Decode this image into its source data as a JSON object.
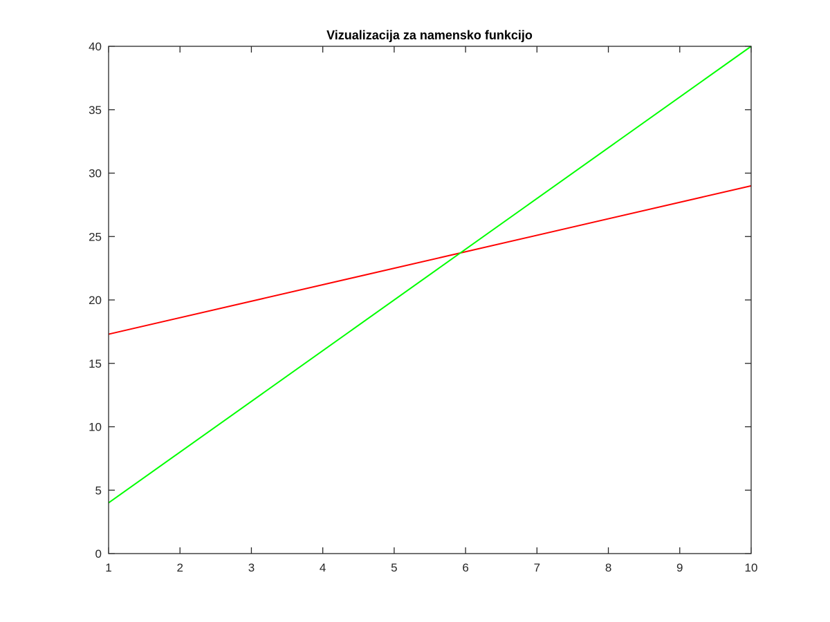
{
  "chart_data": {
    "type": "line",
    "title": "Vizualizacija za namensko funkcijo",
    "xlabel": "",
    "ylabel": "",
    "xlim": [
      1,
      10
    ],
    "ylim": [
      0,
      40
    ],
    "xticks": [
      1,
      2,
      3,
      4,
      5,
      6,
      7,
      8,
      9,
      10
    ],
    "yticks": [
      0,
      5,
      10,
      15,
      20,
      25,
      30,
      35,
      40
    ],
    "grid": false,
    "legend": "none",
    "series": [
      {
        "color": "#ff0000",
        "x": [
          1,
          10
        ],
        "y": [
          17.3,
          29
        ]
      },
      {
        "color": "#00ff00",
        "x": [
          1,
          10
        ],
        "y": [
          4,
          40
        ]
      }
    ]
  }
}
